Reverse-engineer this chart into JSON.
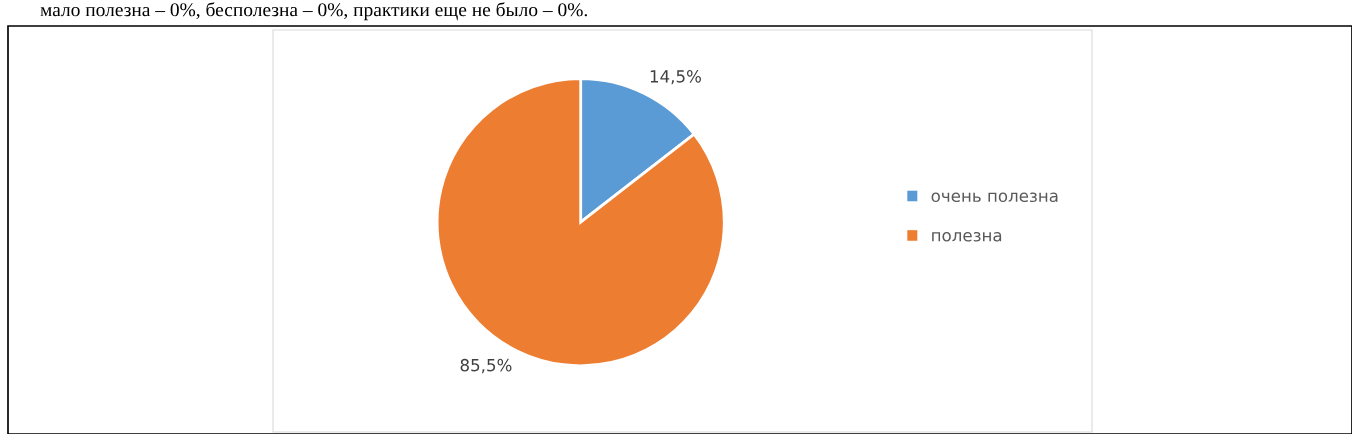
{
  "chart_data": {
    "type": "pie",
    "categories": [
      "очень полезна",
      "полезна"
    ],
    "values": [
      14.5,
      85.5
    ],
    "value_labels": [
      "14,5%",
      "85,5%"
    ],
    "colors": [
      "#5b9bd5",
      "#ed7d31"
    ],
    "legend": "right",
    "annotations": [
      "мало полезна – 0%, бесполезна – 0%, практики еще не было – 0%."
    ]
  }
}
